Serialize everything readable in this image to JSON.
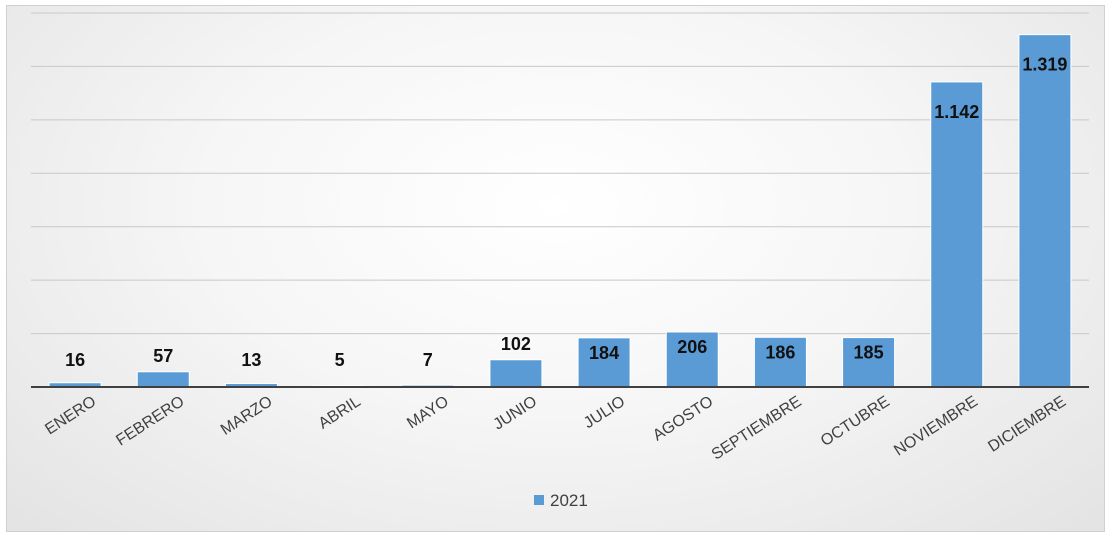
{
  "chart_data": {
    "type": "bar",
    "categories": [
      "ENERO",
      "FEBRERO",
      "MARZO",
      "ABRIL",
      "MAYO",
      "JUNIO",
      "JULIO",
      "AGOSTO",
      "SEPTIEMBRE",
      "OCTUBRE",
      "NOVIEMBRE",
      "DICIEMBRE"
    ],
    "series": [
      {
        "name": "2021",
        "values": [
          16,
          57,
          13,
          5,
          7,
          102,
          184,
          206,
          186,
          185,
          1142,
          1319
        ],
        "labels": [
          "16",
          "57",
          "13",
          "5",
          "7",
          "102",
          "184",
          "206",
          "186",
          "185",
          "1.142",
          "1.319"
        ],
        "color": "#5b9bd5"
      }
    ],
    "ylim": [
      0,
      1400
    ],
    "grid": true,
    "legend": "bottom"
  }
}
